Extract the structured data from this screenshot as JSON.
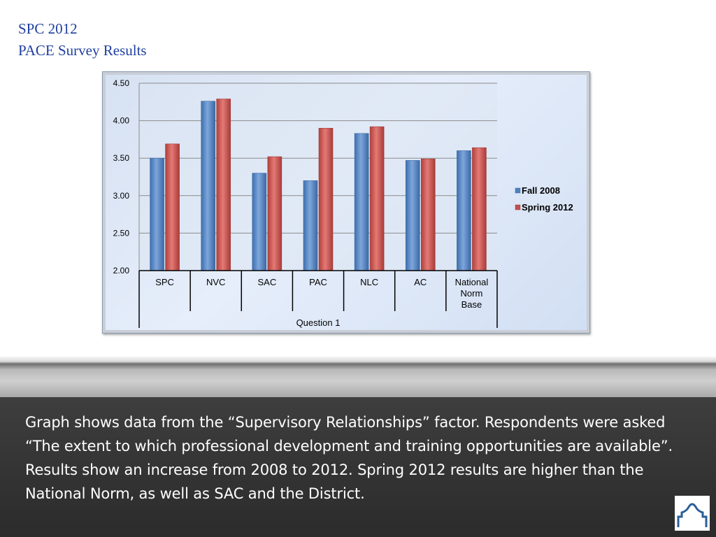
{
  "title": {
    "line1": "SPC 2012",
    "line2": "PACE Survey Results"
  },
  "chart_data": {
    "type": "bar",
    "categories": [
      "SPC",
      "NVC",
      "SAC",
      "PAC",
      "NLC",
      "AC",
      "National Norm Base"
    ],
    "category_lines": [
      [
        "SPC"
      ],
      [
        "NVC"
      ],
      [
        "SAC"
      ],
      [
        "PAC"
      ],
      [
        "NLC"
      ],
      [
        "AC"
      ],
      [
        "National",
        "Norm",
        "Base"
      ]
    ],
    "group_label": "Question 1",
    "series": [
      {
        "name": "Fall 2008",
        "values": [
          3.5,
          4.26,
          3.3,
          3.2,
          3.83,
          3.47,
          3.6
        ],
        "color": "#4f81bd"
      },
      {
        "name": "Spring 2012",
        "values": [
          3.69,
          4.29,
          3.52,
          3.9,
          3.92,
          3.49,
          3.64
        ],
        "color": "#c0504d"
      }
    ],
    "ylim": [
      2.0,
      4.5
    ],
    "yticks": [
      "2.00",
      "2.50",
      "3.00",
      "3.50",
      "4.00",
      "4.50"
    ],
    "grid": true,
    "legend_position": "right"
  },
  "caption": "Graph shows data from the “Supervisory Relationships” factor.  Respondents were asked “The extent to which professional development and training opportunities are available”.  Results show an increase from 2008 to 2012.  Spring 2012 results are higher than the National Norm, as well as SAC and the District.",
  "colors": {
    "title": "#1f3fa0",
    "fall": "#4f81bd",
    "spring": "#c0504d",
    "bottom_panel": "#2e2e2e"
  },
  "logo_icon": "arch-logo-icon"
}
